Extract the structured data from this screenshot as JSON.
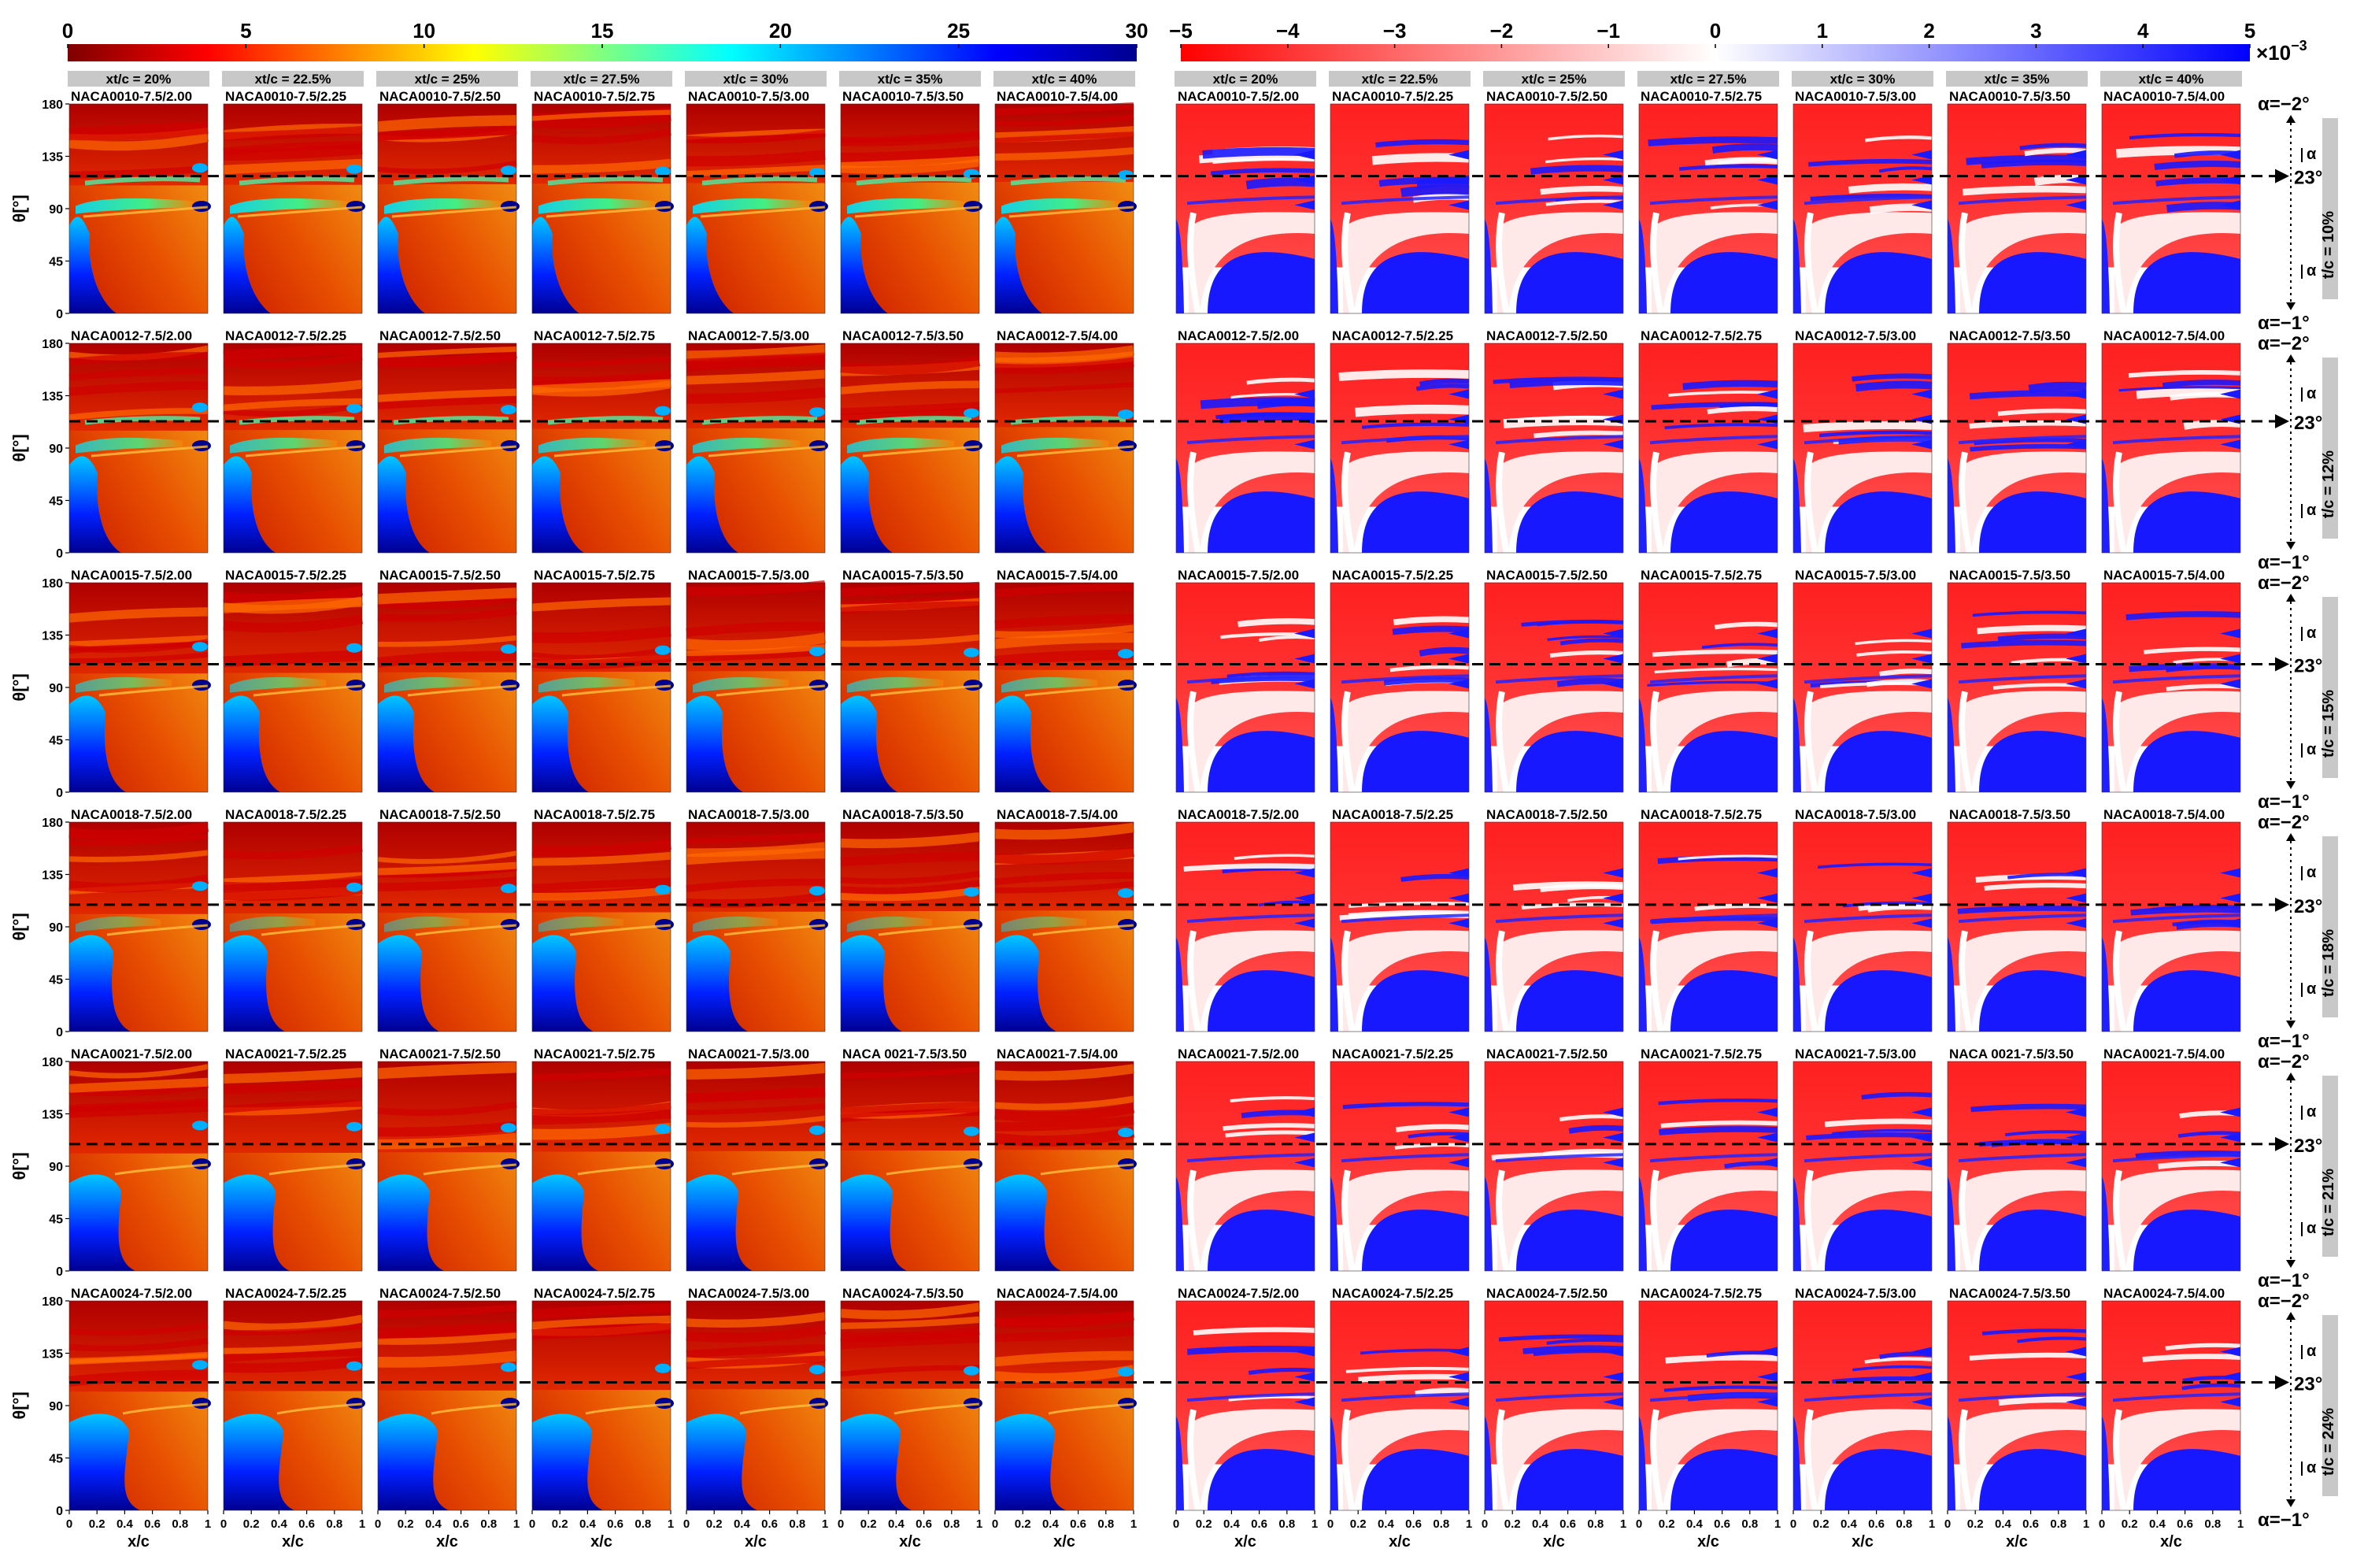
{
  "figure": {
    "row_airfoils": [
      "NACA0010",
      "NACA0012",
      "NACA0015",
      "NACA0018",
      "NACA0021",
      "NACA0024"
    ],
    "row_labels": [
      [
        "NACA0010-7.5/2.00",
        "NACA0010-7.5/2.25",
        "NACA0010-7.5/2.50",
        "NACA0010-7.5/2.75",
        "NACA0010-7.5/3.00",
        "NACA0010-7.5/3.50",
        "NACA0010-7.5/4.00"
      ],
      [
        "NACA0012-7.5/2.00",
        "NACA0012-7.5/2.25",
        "NACA0012-7.5/2.50",
        "NACA0012-7.5/2.75",
        "NACA0012-7.5/3.00",
        "NACA0012-7.5/3.50",
        "NACA0012-7.5/4.00"
      ],
      [
        "NACA0015-7.5/2.00",
        "NACA0015-7.5/2.25",
        "NACA0015-7.5/2.50",
        "NACA0015-7.5/2.75",
        "NACA0015-7.5/3.00",
        "NACA0015-7.5/3.50",
        "NACA0015-7.5/4.00"
      ],
      [
        "NACA0018-7.5/2.00",
        "NACA0018-7.5/2.25",
        "NACA0018-7.5/2.50",
        "NACA0018-7.5/2.75",
        "NACA0018-7.5/3.00",
        "NACA0018-7.5/3.50",
        "NACA0018-7.5/4.00"
      ],
      [
        "NACA0021-7.5/2.00",
        "NACA0021-7.5/2.25",
        "NACA0021-7.5/2.50",
        "NACA0021-7.5/2.75",
        "NACA0021-7.5/3.00",
        "NACA 0021-7.5/3.50",
        "NACA0021-7.5/4.00"
      ],
      [
        "NACA0024-7.5/2.00",
        "NACA0024-7.5/2.25",
        "NACA0024-7.5/2.50",
        "NACA0024-7.5/2.75",
        "NACA0024-7.5/3.00",
        "NACA0024-7.5/3.50",
        "NACA0024-7.5/4.00"
      ]
    ],
    "column_headers": [
      "xt/c = 20%",
      "xt/c = 22.5%",
      "xt/c = 25%",
      "xt/c = 27.5%",
      "xt/c = 30%",
      "xt/c = 35%",
      "xt/c = 40%"
    ],
    "thickness_labels": [
      "t/c = 10%",
      "t/c = 12%",
      "t/c = 15%",
      "t/c = 18%",
      "t/c = 21%",
      "t/c = 24%"
    ],
    "alpha_top": "α=−2°",
    "alpha_bottom": "α=−1°",
    "alpha_mid": "23°",
    "alpha_symbol": "α"
  },
  "colorbars": {
    "left": {
      "ticks": [
        "0",
        "5",
        "10",
        "15",
        "20",
        "25",
        "30"
      ],
      "range": [
        0,
        30
      ],
      "colormap": "jet"
    },
    "right": {
      "ticks": [
        "−5",
        "−4",
        "−3",
        "−2",
        "−1",
        "0",
        "1",
        "2",
        "3",
        "4",
        "5"
      ],
      "range": [
        -5,
        5
      ],
      "multiplier": "×10",
      "multiplier_exp": "−3",
      "colormap": "red-white-blue"
    }
  },
  "chart_data": {
    "type": "heatmap",
    "panels_per_row": 7,
    "rows": 6,
    "xlabel": "x/c",
    "ylabel": "θ[°]",
    "x_ticks": [
      "0",
      "0.2",
      "0.4",
      "0.6",
      "0.8",
      "1"
    ],
    "y_ticks": [
      "0",
      "45",
      "90",
      "135",
      "180"
    ],
    "xlim": [
      0,
      1
    ],
    "ylim": [
      0,
      180
    ],
    "dashed_reference_theta": [
      118,
      113,
      110,
      109,
      109,
      110
    ]
  },
  "colors": {
    "hot_low": "#7f0000",
    "hot_mid": "#ff3000",
    "cold": "#00008f",
    "diverging_neg": "#ff0000",
    "diverging_pos": "#0000ff",
    "frame_gray": "#c8c8c8"
  }
}
